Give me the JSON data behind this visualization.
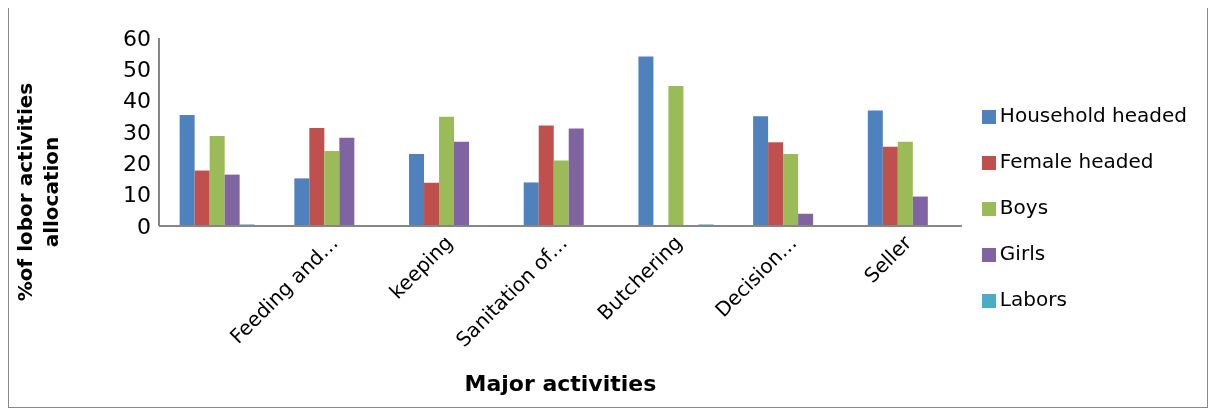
{
  "chart_data": {
    "type": "bar",
    "xlabel": "Major activities",
    "ylabel": "%of lobor activities allocation",
    "categories": [
      null,
      "Feeding and…",
      "keeping",
      "Sanitation of…",
      "Butchering",
      "Decision…",
      "Seller"
    ],
    "series": [
      {
        "name": "Household headed",
        "color": "#4f81bd",
        "values": [
          35.4,
          15.2,
          23,
          13.9,
          54.1,
          35,
          36.9
        ]
      },
      {
        "name": "Female headed",
        "color": "#c0504d",
        "values": [
          17.7,
          31.3,
          13.8,
          32.1,
          0,
          26.7,
          25.3
        ]
      },
      {
        "name": "Boys",
        "color": "#9bbb59",
        "values": [
          28.7,
          23.9,
          34.9,
          20.9,
          44.7,
          23,
          26.9
        ]
      },
      {
        "name": "Girls",
        "color": "#8064a2",
        "values": [
          16.4,
          28.2,
          26.9,
          31.1,
          0,
          3.9,
          9.4
        ]
      },
      {
        "name": "Labors",
        "color": "#4bacc6",
        "values": [
          0.5,
          0,
          0,
          0,
          0.5,
          0,
          0
        ]
      }
    ],
    "ylim": [
      0,
      60
    ],
    "yticks": [
      0,
      10,
      20,
      30,
      40,
      50,
      60
    ],
    "grid": false,
    "legend": "right"
  }
}
